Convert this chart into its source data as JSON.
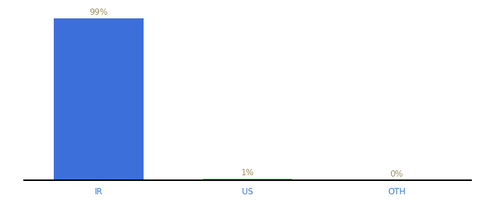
{
  "categories": [
    "IR",
    "US",
    "OTH"
  ],
  "values": [
    99,
    1,
    0
  ],
  "labels": [
    "99%",
    "1%",
    "0%"
  ],
  "bar_colors": [
    "#3d6fdb",
    "#2ecc40",
    "#3d6fdb"
  ],
  "label_color": "#a09060",
  "xtick_color": "#3a7bd5",
  "background_color": "#ffffff",
  "ylim": [
    0,
    100
  ],
  "bar_width": 0.6,
  "axis_label_fontsize": 8.5,
  "value_label_fontsize": 8.5,
  "x_positions": [
    0,
    1,
    2
  ],
  "figsize": [
    6.8,
    3.0
  ],
  "dpi": 100
}
